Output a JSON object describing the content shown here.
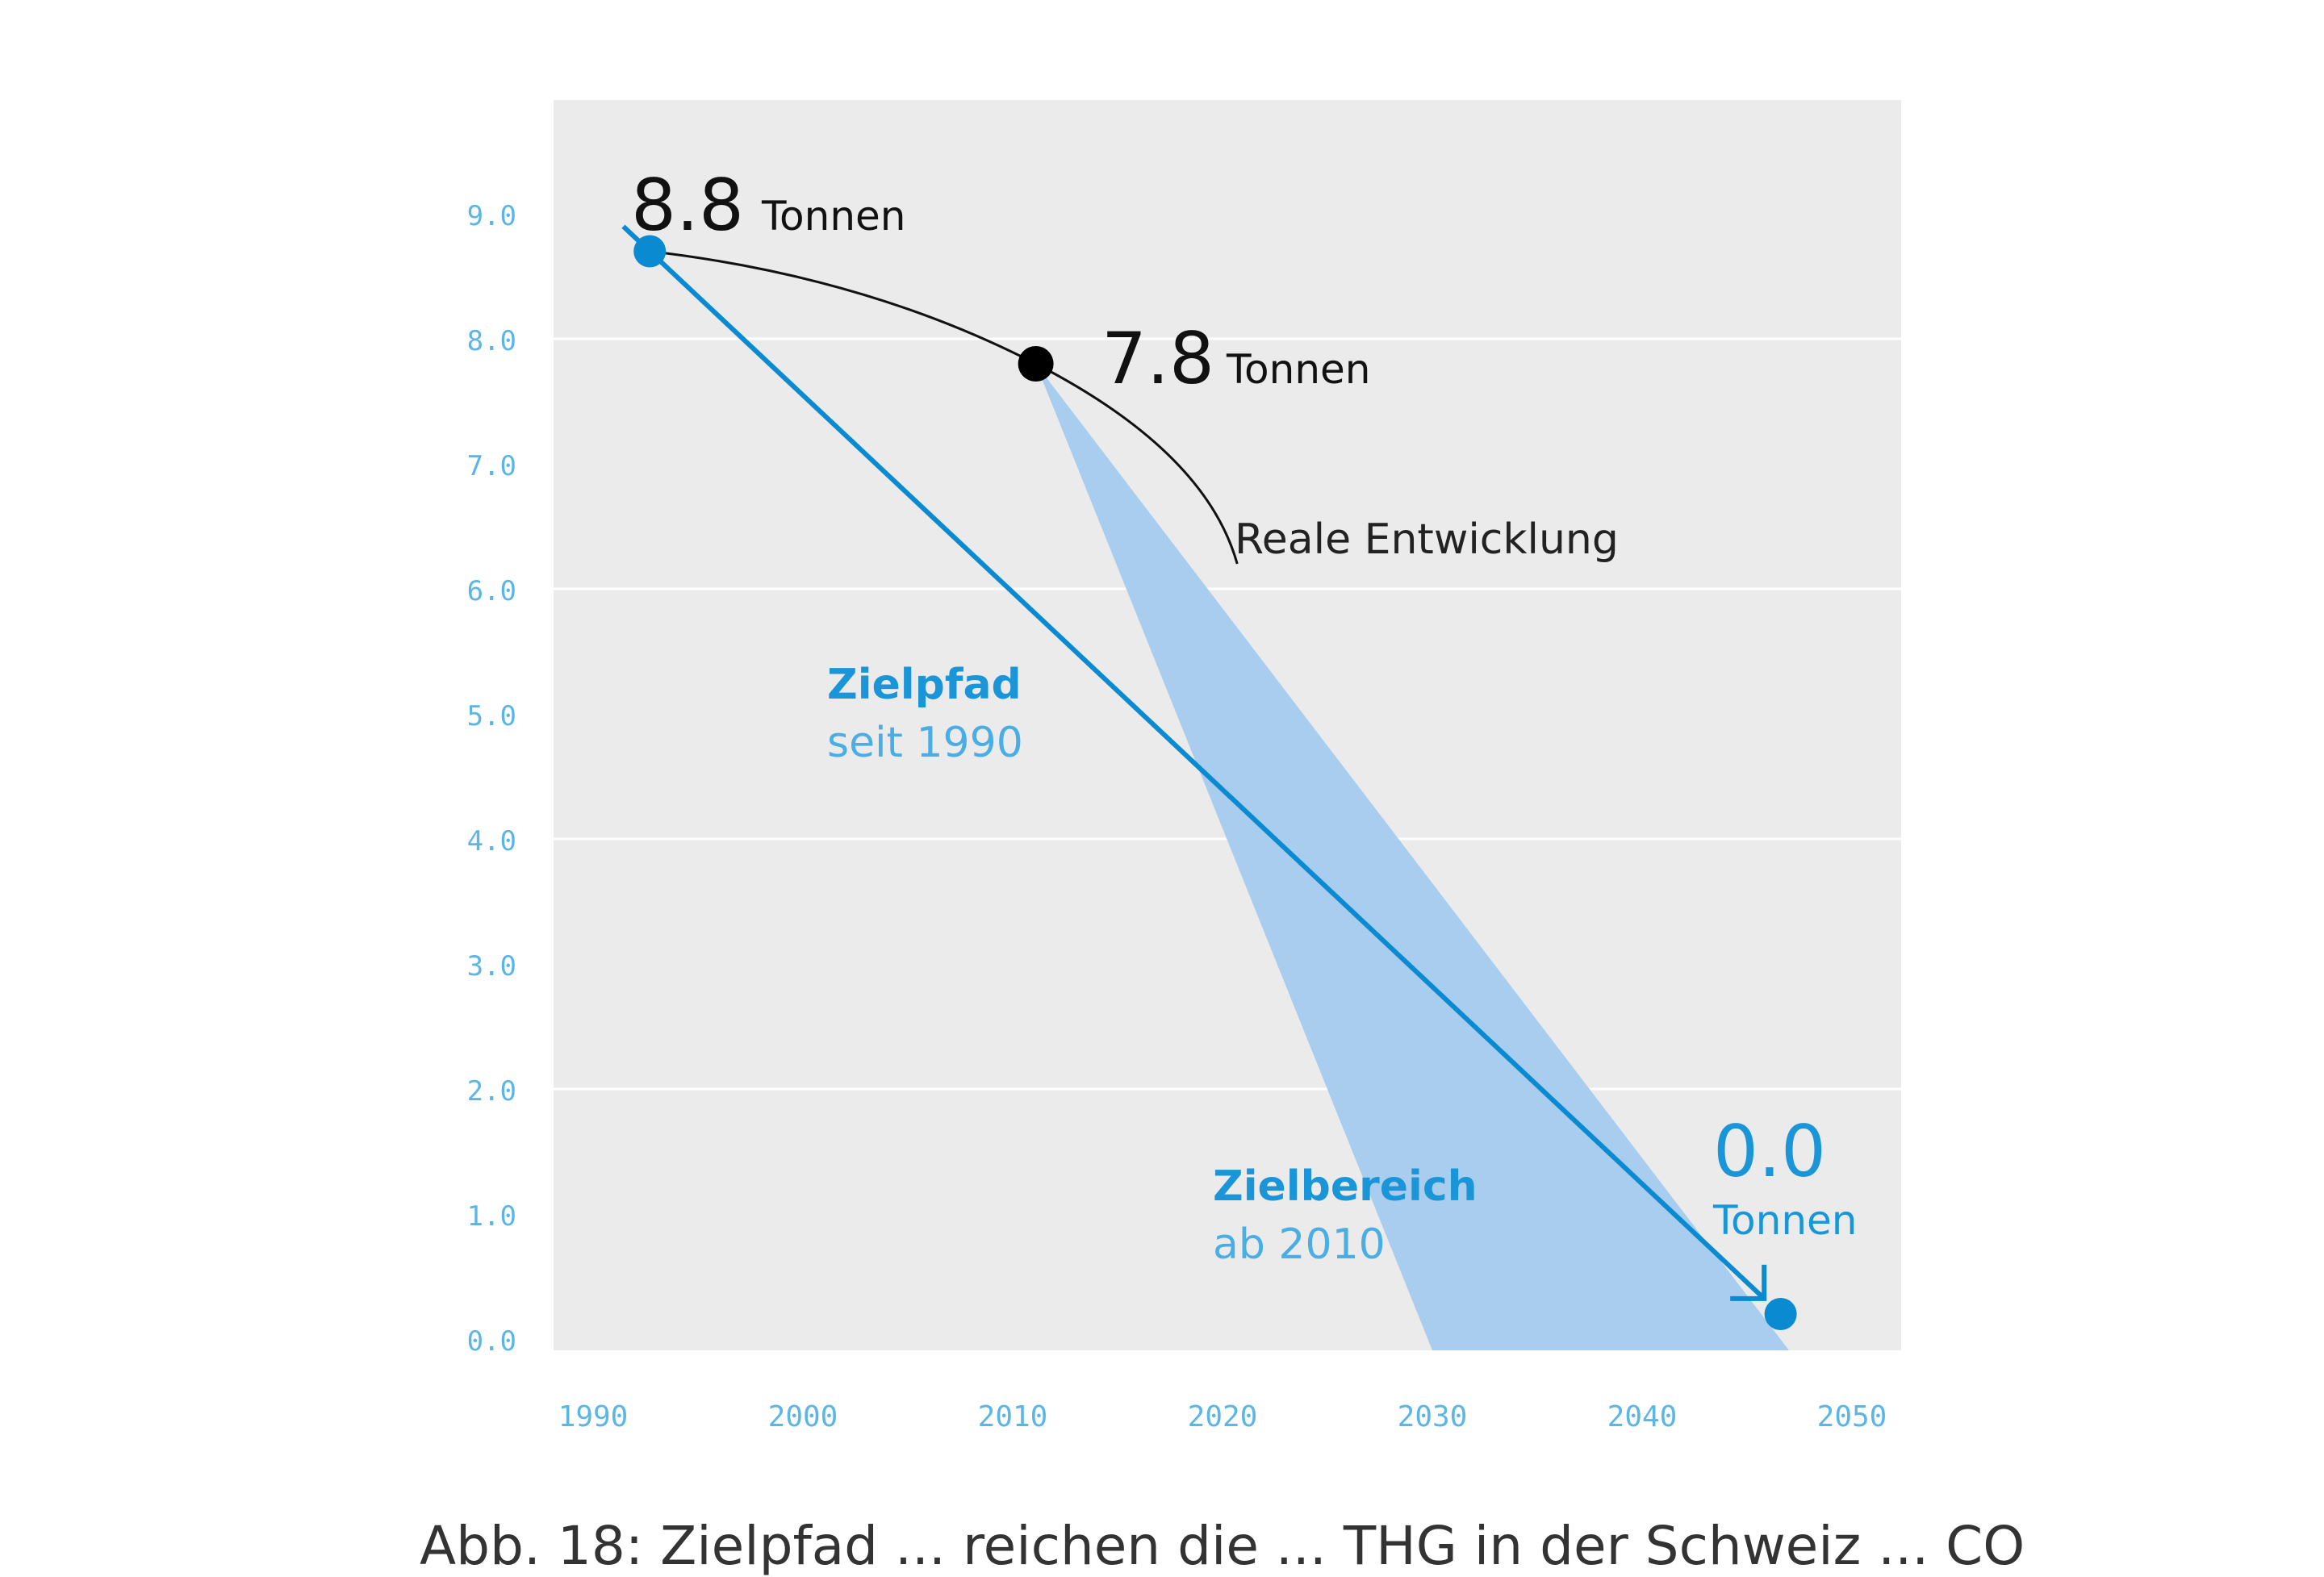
{
  "chart_data": {
    "type": "line",
    "x_ticks": [
      "1990",
      "2000",
      "2010",
      "2020",
      "2030",
      "2040",
      "2050"
    ],
    "y_ticks": [
      "0.0",
      "1.0",
      "2.0",
      "3.0",
      "4.0",
      "5.0",
      "6.0",
      "7.0",
      "8.0",
      "9.0"
    ],
    "xlim": [
      1990,
      2050
    ],
    "ylim": [
      0,
      10
    ],
    "grid": "horizontal",
    "series": [
      {
        "name": "Zielpfad",
        "subtitle": "seit 1990",
        "color": "#0a8ad0",
        "points": [
          {
            "x": 1992.7,
            "y": 8.7
          },
          {
            "x": 2046.6,
            "y": 0.2
          }
        ]
      },
      {
        "name": "Reale Entwicklung",
        "color": "#111111",
        "points": [
          {
            "x": 1992.7,
            "y": 8.7
          },
          {
            "x": 2003.0,
            "y": 8.5
          },
          {
            "x": 2011.1,
            "y": 7.8
          },
          {
            "x": 2020.7,
            "y": 6.2
          }
        ]
      }
    ],
    "target_range": {
      "name": "Zielbereich",
      "subtitle": "ab 2010",
      "color": "#a9cdef",
      "apex": {
        "x": 2011.1,
        "y": 7.8
      },
      "base": [
        2030.0,
        2047.0
      ]
    },
    "annotations": [
      {
        "value": "8.8",
        "unit": "Tonnen"
      },
      {
        "value": "7.8",
        "unit": "Tonnen"
      },
      {
        "value": "0.0",
        "unit": "Tonnen"
      }
    ]
  },
  "caption": "Abb. 18: Zielpfad ... reichen die ... THG in der Schweiz ... CO"
}
